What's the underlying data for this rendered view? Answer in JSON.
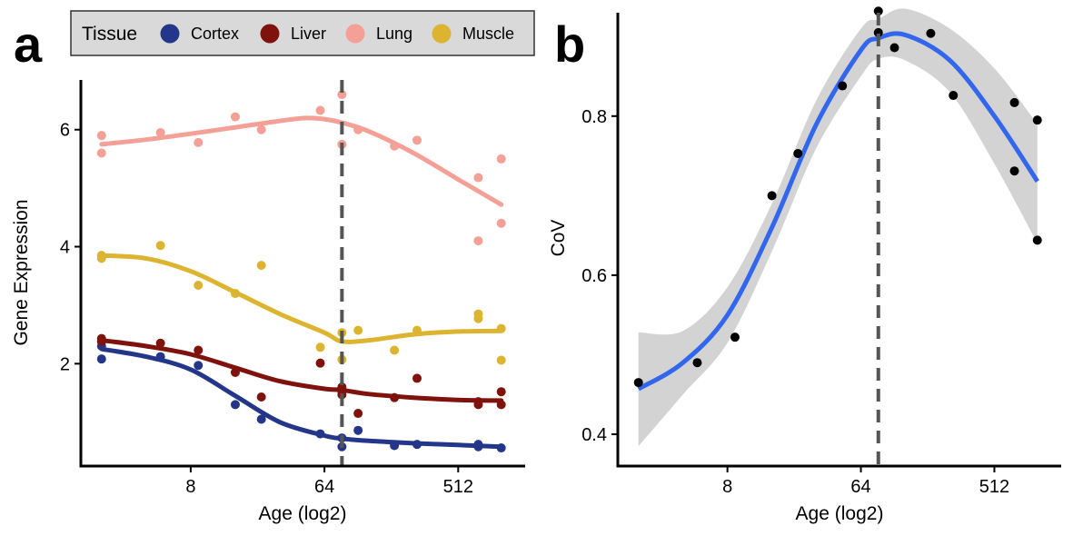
{
  "figure": {
    "panel_a_tag": "a",
    "panel_b_tag": "b"
  },
  "chart_data": [
    {
      "type": "scatter",
      "panel": "a",
      "xlabel": "Age (log2)",
      "ylabel": "Gene Expression",
      "x_scale": "log2",
      "x_ticks": [
        8,
        64,
        512
      ],
      "y_ticks": [
        2,
        4,
        6
      ],
      "xlim": [
        1.45,
        1450
      ],
      "ylim": [
        0.25,
        6.85
      ],
      "vline_x": 84,
      "grid": false,
      "legend": {
        "title": "Tissue",
        "placement": "top",
        "items": [
          "Cortex",
          "Liver",
          "Lung",
          "Muscle"
        ]
      },
      "series": [
        {
          "name": "Cortex",
          "color": "#23368a",
          "points": [
            [
              2,
              2.3
            ],
            [
              2,
              2.08
            ],
            [
              5,
              2.12
            ],
            [
              9,
              1.97
            ],
            [
              16,
              1.3
            ],
            [
              24,
              1.05
            ],
            [
              60,
              0.8
            ],
            [
              84,
              0.73
            ],
            [
              84,
              0.58
            ],
            [
              108,
              0.86
            ],
            [
              190,
              0.6
            ],
            [
              270,
              0.62
            ],
            [
              700,
              0.62
            ],
            [
              700,
              0.58
            ],
            [
              1000,
              0.56
            ]
          ],
          "smooth": [
            [
              2,
              2.25
            ],
            [
              4,
              2.12
            ],
            [
              8,
              1.9
            ],
            [
              16,
              1.45
            ],
            [
              32,
              1.0
            ],
            [
              64,
              0.77
            ],
            [
              84,
              0.72
            ],
            [
              128,
              0.68
            ],
            [
              256,
              0.64
            ],
            [
              512,
              0.61
            ],
            [
              1000,
              0.58
            ]
          ]
        },
        {
          "name": "Liver",
          "color": "#7f120d",
          "points": [
            [
              2,
              2.43
            ],
            [
              2,
              2.38
            ],
            [
              5,
              2.35
            ],
            [
              9,
              2.23
            ],
            [
              16,
              1.85
            ],
            [
              24,
              1.43
            ],
            [
              60,
              2.01
            ],
            [
              84,
              1.6
            ],
            [
              84,
              1.52
            ],
            [
              84,
              1.47
            ],
            [
              108,
              1.15
            ],
            [
              190,
              1.42
            ],
            [
              270,
              1.75
            ],
            [
              700,
              1.35
            ],
            [
              700,
              1.3
            ],
            [
              1000,
              1.52
            ],
            [
              1000,
              1.3
            ]
          ],
          "smooth": [
            [
              2,
              2.4
            ],
            [
              4,
              2.3
            ],
            [
              8,
              2.16
            ],
            [
              16,
              1.93
            ],
            [
              32,
              1.7
            ],
            [
              64,
              1.57
            ],
            [
              84,
              1.55
            ],
            [
              128,
              1.48
            ],
            [
              256,
              1.42
            ],
            [
              512,
              1.38
            ],
            [
              1000,
              1.37
            ]
          ]
        },
        {
          "name": "Lung",
          "color": "#f4a096",
          "points": [
            [
              2,
              5.9
            ],
            [
              2,
              5.6
            ],
            [
              5,
              5.95
            ],
            [
              9,
              5.78
            ],
            [
              16,
              6.22
            ],
            [
              24,
              6.0
            ],
            [
              60,
              6.33
            ],
            [
              84,
              6.6
            ],
            [
              84,
              5.75
            ],
            [
              108,
              6.0
            ],
            [
              190,
              5.72
            ],
            [
              270,
              5.82
            ],
            [
              700,
              5.18
            ],
            [
              700,
              4.1
            ],
            [
              1000,
              5.5
            ],
            [
              1000,
              4.4
            ]
          ],
          "smooth": [
            [
              2,
              5.75
            ],
            [
              4,
              5.83
            ],
            [
              8,
              5.93
            ],
            [
              16,
              6.04
            ],
            [
              32,
              6.15
            ],
            [
              48,
              6.2
            ],
            [
              64,
              6.18
            ],
            [
              84,
              6.12
            ],
            [
              128,
              5.97
            ],
            [
              256,
              5.6
            ],
            [
              512,
              5.15
            ],
            [
              1000,
              4.72
            ]
          ]
        },
        {
          "name": "Muscle",
          "color": "#dcb430",
          "points": [
            [
              2,
              3.85
            ],
            [
              2,
              3.8
            ],
            [
              5,
              4.02
            ],
            [
              9,
              3.34
            ],
            [
              16,
              3.2
            ],
            [
              24,
              3.68
            ],
            [
              60,
              2.28
            ],
            [
              84,
              2.53
            ],
            [
              84,
              2.07
            ],
            [
              108,
              2.57
            ],
            [
              190,
              2.23
            ],
            [
              270,
              2.57
            ],
            [
              700,
              2.85
            ],
            [
              700,
              2.77
            ],
            [
              1000,
              2.6
            ],
            [
              1000,
              2.06
            ]
          ],
          "smooth": [
            [
              2,
              3.85
            ],
            [
              4,
              3.8
            ],
            [
              8,
              3.58
            ],
            [
              16,
              3.22
            ],
            [
              32,
              2.85
            ],
            [
              64,
              2.53
            ],
            [
              84,
              2.38
            ],
            [
              128,
              2.4
            ],
            [
              256,
              2.5
            ],
            [
              512,
              2.55
            ],
            [
              1000,
              2.56
            ]
          ]
        }
      ]
    },
    {
      "type": "scatter",
      "panel": "b",
      "xlabel": "Age (log2)",
      "ylabel": "CoV",
      "x_scale": "log2",
      "x_ticks": [
        8,
        64,
        512
      ],
      "y_ticks": [
        0.4,
        0.6,
        0.8
      ],
      "xlim": [
        1.45,
        1450
      ],
      "ylim": [
        0.36,
        0.93
      ],
      "vline_x": 84,
      "grid": false,
      "series": [
        {
          "color": "#000000",
          "points": [
            [
              2,
              0.465
            ],
            [
              5,
              0.49
            ],
            [
              9,
              0.522
            ],
            [
              16,
              0.7
            ],
            [
              24,
              0.753
            ],
            [
              48,
              0.838
            ],
            [
              84,
              0.932
            ],
            [
              84,
              0.905
            ],
            [
              108,
              0.886
            ],
            [
              190,
              0.904
            ],
            [
              270,
              0.826
            ],
            [
              700,
              0.817
            ],
            [
              700,
              0.731
            ],
            [
              1000,
              0.795
            ],
            [
              1000,
              0.644
            ]
          ]
        }
      ],
      "smooth": {
        "color": "#3366ee",
        "band_color": "#d3d3d3",
        "fit": [
          [
            2,
            0.457
          ],
          [
            4,
            0.49
          ],
          [
            8,
            0.55
          ],
          [
            16,
            0.66
          ],
          [
            32,
            0.79
          ],
          [
            64,
            0.883
          ],
          [
            84,
            0.898
          ],
          [
            128,
            0.902
          ],
          [
            256,
            0.87
          ],
          [
            512,
            0.8
          ],
          [
            1000,
            0.718
          ]
        ],
        "upper": [
          [
            2,
            0.528
          ],
          [
            4,
            0.53
          ],
          [
            8,
            0.585
          ],
          [
            16,
            0.69
          ],
          [
            32,
            0.82
          ],
          [
            64,
            0.91
          ],
          [
            84,
            0.922
          ],
          [
            128,
            0.935
          ],
          [
            256,
            0.91
          ],
          [
            512,
            0.86
          ],
          [
            1000,
            0.79
          ]
        ],
        "lower": [
          [
            2,
            0.385
          ],
          [
            4,
            0.45
          ],
          [
            8,
            0.515
          ],
          [
            16,
            0.63
          ],
          [
            32,
            0.76
          ],
          [
            64,
            0.85
          ],
          [
            84,
            0.872
          ],
          [
            128,
            0.87
          ],
          [
            256,
            0.83
          ],
          [
            512,
            0.74
          ],
          [
            1000,
            0.64
          ]
        ]
      }
    }
  ]
}
